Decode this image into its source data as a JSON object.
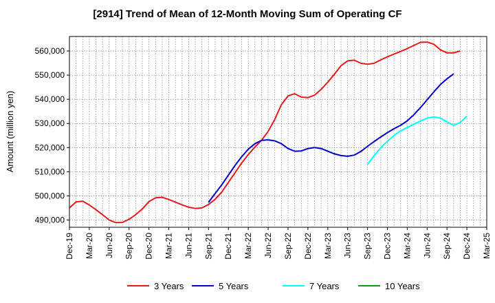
{
  "chart_data": {
    "type": "line",
    "title": "[2914]  Trend of Mean of 12-Month Moving Sum of Operating CF",
    "xlabel": "",
    "ylabel": "Amount (million yen)",
    "ylim": [
      487000,
      566000
    ],
    "y_ticks": [
      490000,
      500000,
      510000,
      520000,
      530000,
      540000,
      550000,
      560000
    ],
    "y_tick_labels": [
      "490,000",
      "500,000",
      "510,000",
      "520,000",
      "530,000",
      "540,000",
      "550,000",
      "560,000"
    ],
    "x_tick_labels": [
      "Dec-19",
      "Mar-20",
      "Jun-20",
      "Sep-20",
      "Dec-20",
      "Mar-21",
      "Jun-21",
      "Sep-21",
      "Dec-21",
      "Mar-22",
      "Jun-22",
      "Sep-22",
      "Dec-22",
      "Mar-23",
      "Jun-23",
      "Sep-23",
      "Dec-23",
      "Mar-24",
      "Jun-24",
      "Sep-24",
      "Dec-24",
      "Mar-25"
    ],
    "x_range_months": [
      0,
      63
    ],
    "grid": true,
    "legend_position": "bottom",
    "series": [
      {
        "name": "3 Years",
        "color": "#e41a1c",
        "start_month": 0,
        "values": [
          495000,
          497500,
          497800,
          496200,
          494300,
          492200,
          490000,
          488900,
          489000,
          490300,
          492200,
          494600,
          497600,
          499200,
          499400,
          498500,
          497400,
          496300,
          495300,
          494800,
          495000,
          496400,
          498600,
          501600,
          505600,
          509600,
          513600,
          517100,
          520200,
          523000,
          526700,
          531700,
          537800,
          541400,
          542300,
          540900,
          540700,
          541700,
          544100,
          547100,
          550400,
          553900,
          555900,
          556200,
          554900,
          554500,
          554900,
          556300,
          557600,
          558700,
          559800,
          561000,
          562300,
          563600,
          563700,
          562800,
          560500,
          559200,
          559200,
          560000
        ]
      },
      {
        "name": "5 Years",
        "color": "#0000cd",
        "start_month": 21,
        "values": [
          497300,
          501000,
          504600,
          508600,
          512600,
          516200,
          519300,
          521600,
          523000,
          523200,
          522800,
          521600,
          519600,
          518500,
          518600,
          519600,
          520000,
          519600,
          518500,
          517400,
          516700,
          516400,
          516900,
          518400,
          520500,
          522500,
          524400,
          526200,
          527800,
          529200,
          531100,
          533600,
          536600,
          539800,
          543000,
          546100,
          548500,
          550500
        ]
      },
      {
        "name": "7 Years",
        "color": "#00ffff",
        "start_month": 45,
        "values": [
          513000,
          516700,
          519900,
          522600,
          525000,
          526900,
          528300,
          529700,
          531000,
          532200,
          532700,
          532200,
          530600,
          529200,
          530400,
          533000
        ]
      },
      {
        "name": "10 Years",
        "color": "#228b22",
        "start_month": 0,
        "values": []
      }
    ]
  }
}
